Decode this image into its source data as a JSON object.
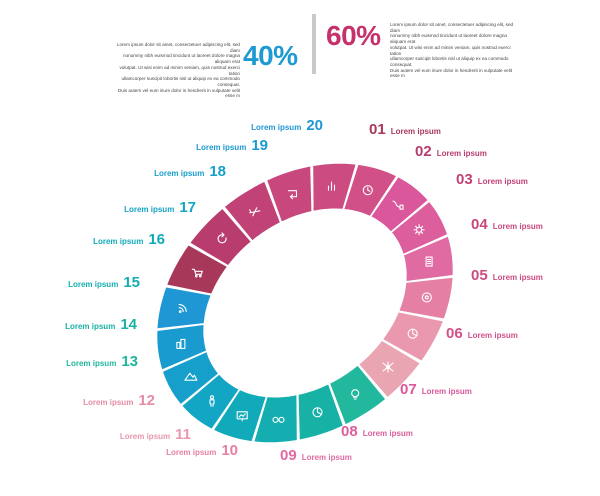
{
  "header": {
    "left": {
      "percent": "40%",
      "percent_color": "#1e9ad3",
      "text": "Lorem ipsum dolor sit amet, consectetuer adipiscing elit, sed diam\nnonummy nibh euismod tincidunt ut laoreet dolore magna aliquam erat\nvolutpat. Ut wisi enim ad minim veniam, quis nostrud exerci tation\nullamcorper suscipit lobortis nisl ut aliquip ex ea commodo consequat.\nDuis autem vel eum iriure dolor in hendrerit in vulputate velit esse m"
    },
    "right": {
      "percent": "60%",
      "percent_color": "#c6306b",
      "text": "Lorem ipsum dolor sit amet, consectetuer adipiscing elit, sed diam\nnonummy nibh euismod tincidunt ut laoreet dolore magna aliquam erat\nvolutpat. Ut wisi enim ad minim veniam, quis nostrud exerci tation\nullamcorper suscipit lobortis nisl ut aliquip ex ea commodo consequat.\nDuis autem vel eum iriure dolor in hendrerit in vulputate velit esse m"
    }
  },
  "ring": {
    "segments": [
      {
        "num": "01",
        "label": "Lorem ipsum",
        "color": "#a8385a",
        "num_color": "#a8385a",
        "icon": "cart-icon"
      },
      {
        "num": "02",
        "label": "Lorem ipsum",
        "color": "#b83c6d",
        "num_color": "#b83c6d",
        "icon": "refresh-icon"
      },
      {
        "num": "03",
        "label": "Lorem ipsum",
        "color": "#c14276",
        "num_color": "#c14276",
        "icon": "airplane-icon"
      },
      {
        "num": "04",
        "label": "Lorem ipsum",
        "color": "#c8487e",
        "num_color": "#c8487e",
        "icon": "return-arrow-icon"
      },
      {
        "num": "05",
        "label": "Lorem ipsum",
        "color": "#cc4c82",
        "num_color": "#cc4c82",
        "icon": "bar-chart-icon"
      },
      {
        "num": "06",
        "label": "Lorem ipsum",
        "color": "#d25088",
        "num_color": "#d25088",
        "icon": "clock-icon"
      },
      {
        "num": "07",
        "label": "Lorem ipsum",
        "color": "#d9579a",
        "num_color": "#d9579a",
        "icon": "plug-icon"
      },
      {
        "num": "08",
        "label": "Lorem ipsum",
        "color": "#dd5e9d",
        "num_color": "#dd5e9d",
        "icon": "gear-icon"
      },
      {
        "num": "09",
        "label": "Lorem ipsum",
        "color": "#e06aa2",
        "num_color": "#e06aa2",
        "icon": "document-icon"
      },
      {
        "num": "10",
        "label": "Lorem ipsum",
        "color": "#e67fa4",
        "num_color": "#e67fa4",
        "icon": "target-icon"
      },
      {
        "num": "11",
        "label": "Lorem ipsum",
        "color": "#e998ad",
        "num_color": "#e998ad",
        "icon": "pie-chart-icon"
      },
      {
        "num": "12",
        "label": "Lorem ipsum",
        "color": "#eaa5b2",
        "num_color": "#e58ca3",
        "icon": "network-icon"
      },
      {
        "num": "13",
        "label": "Lorem ipsum",
        "color": "#22b89d",
        "num_color": "#1fb59c",
        "icon": "lightbulb-icon"
      },
      {
        "num": "14",
        "label": "Lorem ipsum",
        "color": "#18b1a6",
        "num_color": "#18b1a6",
        "icon": "pie-chart-icon"
      },
      {
        "num": "15",
        "label": "Lorem ipsum",
        "color": "#14aeb1",
        "num_color": "#14aeb1",
        "icon": "glasses-icon"
      },
      {
        "num": "16",
        "label": "Lorem ipsum",
        "color": "#11aabb",
        "num_color": "#11aabb",
        "icon": "presentation-icon"
      },
      {
        "num": "17",
        "label": "Lorem ipsum",
        "color": "#12a5c4",
        "num_color": "#12a5c4",
        "icon": "person-icon"
      },
      {
        "num": "18",
        "label": "Lorem ipsum",
        "color": "#169fcb",
        "num_color": "#169fcb",
        "icon": "mountain-icon"
      },
      {
        "num": "19",
        "label": "Lorem ipsum",
        "color": "#1a9bd0",
        "num_color": "#1a9bd0",
        "icon": "buildings-icon"
      },
      {
        "num": "20",
        "label": "Lorem ipsum",
        "color": "#1e97d4",
        "num_color": "#1e97d4",
        "icon": "rss-icon"
      }
    ]
  }
}
